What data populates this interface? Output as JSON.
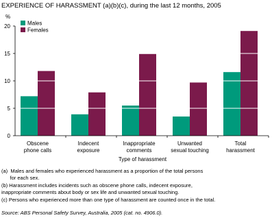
{
  "chart_data": {
    "type": "bar",
    "title": "EXPERIENCE OF HARASSMENT (a)(b)(c), during the last 12 months, 2005",
    "y_label": "%",
    "x_label": "Type of harassment",
    "categories": [
      "Obscene\nphone calls",
      "Indecent\nexposure",
      "Inappropriate\ncomments",
      "Unwanted\nsexual touching",
      "Total\nharassment"
    ],
    "series": [
      {
        "name": "Males",
        "color": "#009a7c",
        "values": [
          7.2,
          3.9,
          5.5,
          3.5,
          11.6
        ]
      },
      {
        "name": "Females",
        "color": "#7b1a4b",
        "values": [
          11.8,
          7.9,
          14.9,
          9.7,
          19.1
        ]
      }
    ],
    "ylim": [
      0,
      20
    ],
    "yticks": [
      0,
      5,
      10,
      15,
      20
    ],
    "grid": true,
    "legend": "top-left",
    "notes": [
      "(a)  Males and females who experienced harassment as a proportion of the total persons\n      for each sex.",
      "(b) Harassment includes incidents such as obscene phone calls, indecent exposure,\ninappropriate comments about body or sex life and unwanted sexual touching.",
      "(c) Persons who experienced more than one type of harassment are counted once in the total."
    ],
    "source": "Source: ABS Personal Safety Survey, Australia, 2005 (cat. no. 4906.0)."
  }
}
